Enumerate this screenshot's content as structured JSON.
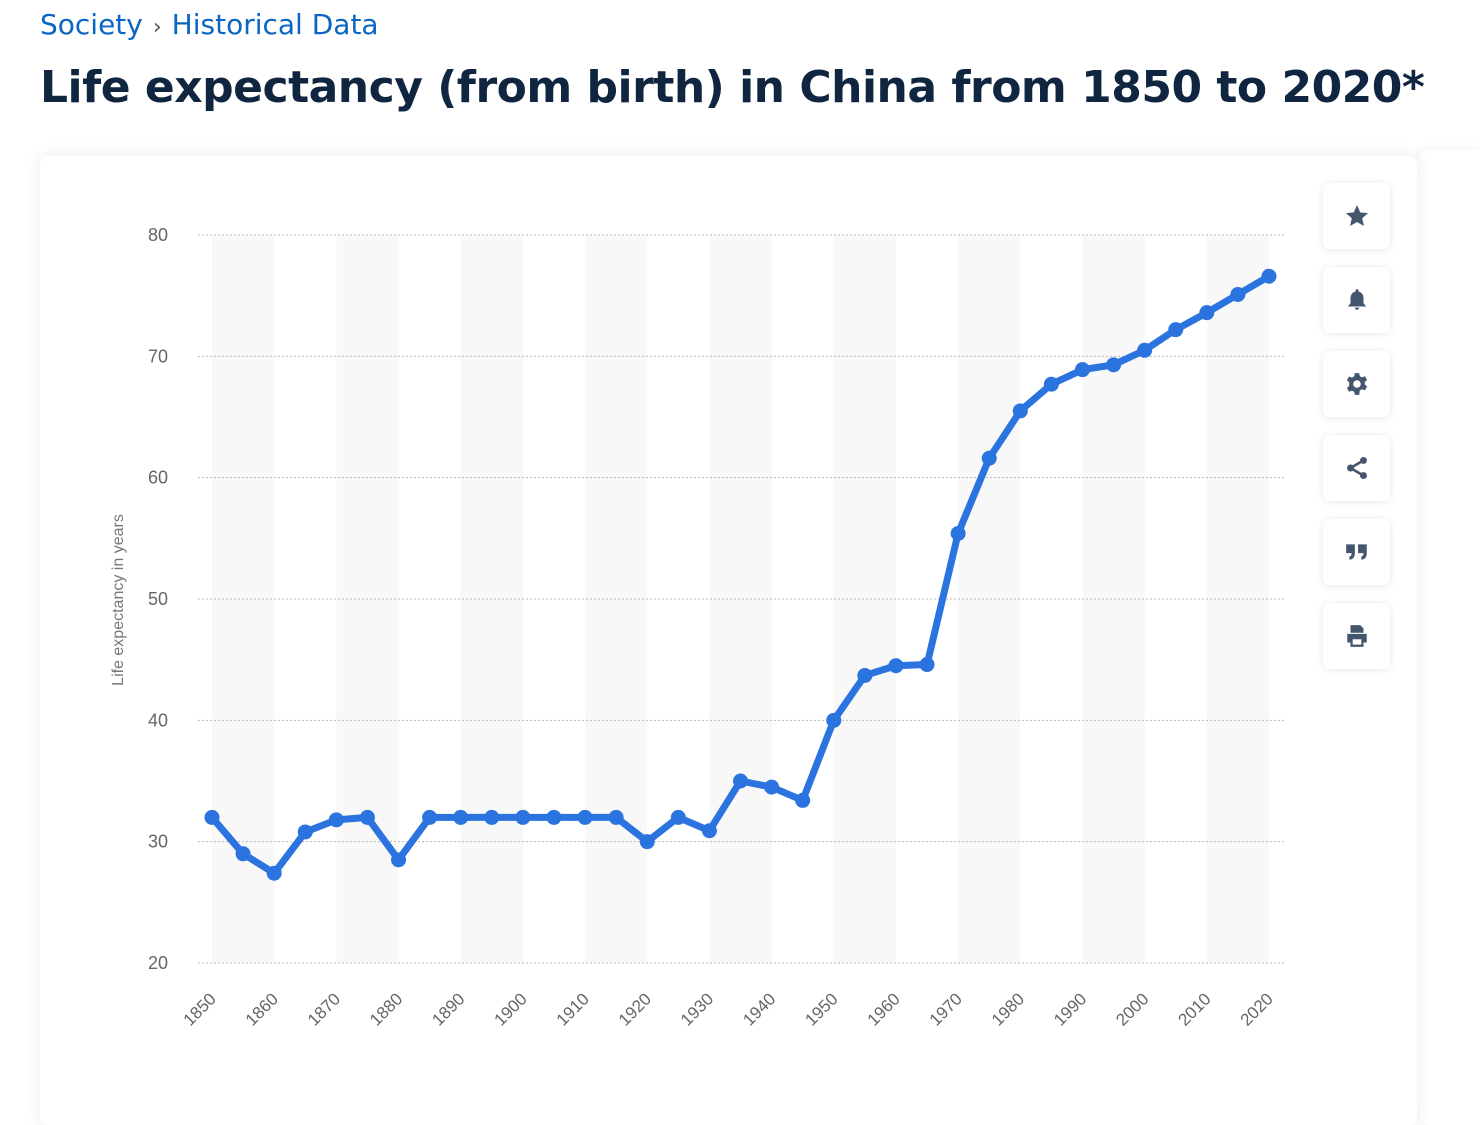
{
  "breadcrumb": {
    "items": [
      "Society",
      "Historical Data"
    ],
    "separator": "›"
  },
  "title": "Life expectancy (from birth) in China from 1850 to 2020*",
  "tools": [
    {
      "icon": "star-icon",
      "name": "favorite"
    },
    {
      "icon": "bell-icon",
      "name": "alert"
    },
    {
      "icon": "gear-icon",
      "name": "settings"
    },
    {
      "icon": "share-icon",
      "name": "share"
    },
    {
      "icon": "quote-icon",
      "name": "cite"
    },
    {
      "icon": "print-icon",
      "name": "print"
    }
  ],
  "colors": {
    "line": "#2b74e0",
    "band": "#f8f8f8",
    "grid": "#b8b8b8"
  },
  "chart_data": {
    "type": "line",
    "title": "Life expectancy (from birth) in China from 1850 to 2020*",
    "xlabel": "",
    "ylabel": "Life expectancy in years",
    "ylim": [
      20,
      80
    ],
    "yticks": [
      20,
      30,
      40,
      50,
      60,
      70,
      80
    ],
    "xticks": [
      1850,
      1860,
      1870,
      1880,
      1890,
      1900,
      1910,
      1920,
      1930,
      1940,
      1950,
      1960,
      1970,
      1980,
      1990,
      2000,
      2010,
      2020
    ],
    "grid": true,
    "x": [
      1850,
      1855,
      1860,
      1865,
      1870,
      1875,
      1880,
      1885,
      1890,
      1895,
      1900,
      1905,
      1910,
      1915,
      1920,
      1925,
      1930,
      1935,
      1940,
      1945,
      1950,
      1955,
      1960,
      1965,
      1970,
      1975,
      1980,
      1985,
      1990,
      1995,
      2000,
      2005,
      2010,
      2015,
      2020
    ],
    "series": [
      {
        "name": "Life expectancy",
        "values": [
          32,
          29,
          27.4,
          30.8,
          31.8,
          32,
          28.5,
          32,
          32,
          32,
          32,
          32,
          32,
          32,
          30,
          32,
          30.9,
          35,
          34.5,
          33.4,
          40,
          43.7,
          44.5,
          44.6,
          55.4,
          61.6,
          65.5,
          67.7,
          68.9,
          69.3,
          70.5,
          72.2,
          73.6,
          75.1,
          76.6
        ]
      }
    ]
  }
}
